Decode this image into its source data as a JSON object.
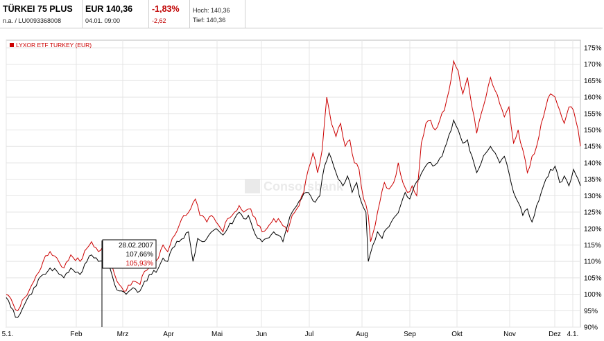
{
  "header": {
    "name": "TÜRKEI 75 PLUS",
    "isin": "n.a.  /  LU0093368008",
    "price": "EUR 140,36",
    "datetime": "04.01. 09:00",
    "change_pct": "-1,83%",
    "change_abs": "-2,62",
    "high": "Hoch: 140,36",
    "low": "Tief: 140,36"
  },
  "watermark": "Consorsbank",
  "tooltip": {
    "date": "28.02.2007",
    "black_value": "107,66%",
    "red_value": "105,93%"
  },
  "colors": {
    "red": "#cc0000",
    "black": "#000000",
    "grid": "#e4e4e4"
  },
  "chart_data": {
    "type": "line",
    "y_unit": "%",
    "ylim": [
      90,
      175
    ],
    "yticks": [
      "175%",
      "170%",
      "165%",
      "160%",
      "155%",
      "150%",
      "145%",
      "140%",
      "135%",
      "130%",
      "125%",
      "120%",
      "115%",
      "110%",
      "105%",
      "100%",
      "95%",
      "90%"
    ],
    "xticks": [
      "5.1.",
      "Feb",
      "Mrz",
      "Apr",
      "Mai",
      "Jun",
      "Jul",
      "Aug",
      "Sep",
      "Okt",
      "Nov",
      "Dez",
      "4.1."
    ],
    "legend": [
      "LYXOR ETF TURKEY (EUR)"
    ],
    "legend_position": "top-left",
    "grid": true,
    "x_points": 250,
    "series": [
      {
        "name": "LYXOR ETF TURKEY (EUR)",
        "color": "red",
        "keypoints": [
          [
            0,
            100
          ],
          [
            3,
            97
          ],
          [
            5,
            95
          ],
          [
            8,
            99
          ],
          [
            12,
            104
          ],
          [
            16,
            110
          ],
          [
            19,
            113
          ],
          [
            22,
            111
          ],
          [
            25,
            108
          ],
          [
            28,
            112
          ],
          [
            32,
            110
          ],
          [
            35,
            114
          ],
          [
            37,
            116
          ],
          [
            40,
            113
          ],
          [
            43,
            115
          ],
          [
            45,
            112
          ],
          [
            47,
            106
          ],
          [
            49,
            103
          ],
          [
            52,
            101
          ],
          [
            55,
            104
          ],
          [
            58,
            103
          ],
          [
            60,
            107
          ],
          [
            63,
            109
          ],
          [
            66,
            111
          ],
          [
            68,
            115
          ],
          [
            70,
            113
          ],
          [
            72,
            117
          ],
          [
            75,
            121
          ],
          [
            77,
            124
          ],
          [
            80,
            126
          ],
          [
            82,
            129
          ],
          [
            84,
            124
          ],
          [
            87,
            122
          ],
          [
            89,
            124
          ],
          [
            91,
            122
          ],
          [
            94,
            119
          ],
          [
            96,
            123
          ],
          [
            99,
            125
          ],
          [
            101,
            127
          ],
          [
            103,
            125
          ],
          [
            106,
            126
          ],
          [
            109,
            121
          ],
          [
            111,
            119
          ],
          [
            113,
            120
          ],
          [
            116,
            123
          ],
          [
            119,
            122
          ],
          [
            122,
            119
          ],
          [
            124,
            124
          ],
          [
            126,
            126
          ],
          [
            129,
            131
          ],
          [
            131,
            138
          ],
          [
            133,
            143
          ],
          [
            135,
            137
          ],
          [
            137,
            144
          ],
          [
            139,
            160
          ],
          [
            141,
            152
          ],
          [
            143,
            148
          ],
          [
            145,
            152
          ],
          [
            147,
            145
          ],
          [
            149,
            147
          ],
          [
            151,
            140
          ],
          [
            153,
            138
          ],
          [
            155,
            129
          ],
          [
            157,
            124
          ],
          [
            158,
            116
          ],
          [
            160,
            121
          ],
          [
            162,
            128
          ],
          [
            164,
            134
          ],
          [
            166,
            132
          ],
          [
            168,
            134
          ],
          [
            170,
            140
          ],
          [
            172,
            134
          ],
          [
            174,
            131
          ],
          [
            176,
            133
          ],
          [
            178,
            130
          ],
          [
            180,
            146
          ],
          [
            182,
            152
          ],
          [
            184,
            153
          ],
          [
            186,
            150
          ],
          [
            188,
            153
          ],
          [
            190,
            156
          ],
          [
            192,
            162
          ],
          [
            194,
            171
          ],
          [
            196,
            168
          ],
          [
            198,
            161
          ],
          [
            200,
            166
          ],
          [
            202,
            157
          ],
          [
            204,
            149
          ],
          [
            206,
            155
          ],
          [
            208,
            160
          ],
          [
            210,
            166
          ],
          [
            212,
            162
          ],
          [
            214,
            158
          ],
          [
            216,
            154
          ],
          [
            218,
            157
          ],
          [
            220,
            146
          ],
          [
            222,
            150
          ],
          [
            224,
            144
          ],
          [
            226,
            137
          ],
          [
            228,
            142
          ],
          [
            230,
            145
          ],
          [
            232,
            152
          ],
          [
            234,
            157
          ],
          [
            236,
            161
          ],
          [
            238,
            160
          ],
          [
            240,
            156
          ],
          [
            242,
            152
          ],
          [
            244,
            157
          ],
          [
            246,
            156
          ],
          [
            248,
            150
          ],
          [
            249,
            145
          ]
        ]
      },
      {
        "name": "",
        "color": "black",
        "keypoints": [
          [
            0,
            99
          ],
          [
            2,
            96
          ],
          [
            4,
            93
          ],
          [
            6,
            94
          ],
          [
            8,
            97
          ],
          [
            12,
            102
          ],
          [
            16,
            106
          ],
          [
            19,
            108
          ],
          [
            22,
            107
          ],
          [
            25,
            105
          ],
          [
            28,
            108
          ],
          [
            32,
            106
          ],
          [
            35,
            110
          ],
          [
            37,
            112
          ],
          [
            40,
            110
          ],
          [
            43,
            111
          ],
          [
            45,
            108
          ],
          [
            47,
            103
          ],
          [
            49,
            101
          ],
          [
            52,
            100
          ],
          [
            55,
            102
          ],
          [
            58,
            101
          ],
          [
            60,
            104
          ],
          [
            63,
            106
          ],
          [
            66,
            108
          ],
          [
            68,
            111
          ],
          [
            70,
            110
          ],
          [
            72,
            114
          ],
          [
            75,
            116
          ],
          [
            77,
            117
          ],
          [
            79,
            119
          ],
          [
            81,
            110
          ],
          [
            83,
            117
          ],
          [
            85,
            116
          ],
          [
            87,
            117
          ],
          [
            89,
            119
          ],
          [
            91,
            120
          ],
          [
            94,
            118
          ],
          [
            96,
            120
          ],
          [
            99,
            123
          ],
          [
            101,
            125
          ],
          [
            103,
            123
          ],
          [
            105,
            124
          ],
          [
            107,
            120
          ],
          [
            109,
            117
          ],
          [
            111,
            116
          ],
          [
            113,
            117
          ],
          [
            116,
            119
          ],
          [
            118,
            118
          ],
          [
            120,
            116
          ],
          [
            122,
            121
          ],
          [
            124,
            125
          ],
          [
            126,
            127
          ],
          [
            128,
            129
          ],
          [
            130,
            131
          ],
          [
            132,
            130
          ],
          [
            134,
            128
          ],
          [
            136,
            130
          ],
          [
            138,
            139
          ],
          [
            140,
            143
          ],
          [
            142,
            139
          ],
          [
            144,
            135
          ],
          [
            146,
            133
          ],
          [
            148,
            136
          ],
          [
            150,
            131
          ],
          [
            152,
            134
          ],
          [
            154,
            128
          ],
          [
            156,
            125
          ],
          [
            157,
            110
          ],
          [
            159,
            115
          ],
          [
            161,
            119
          ],
          [
            163,
            117
          ],
          [
            165,
            120
          ],
          [
            167,
            122
          ],
          [
            169,
            124
          ],
          [
            171,
            127
          ],
          [
            173,
            131
          ],
          [
            175,
            129
          ],
          [
            177,
            133
          ],
          [
            179,
            135
          ],
          [
            181,
            138
          ],
          [
            183,
            140
          ],
          [
            185,
            139
          ],
          [
            187,
            140
          ],
          [
            189,
            142
          ],
          [
            191,
            146
          ],
          [
            193,
            150
          ],
          [
            194,
            153
          ],
          [
            196,
            150
          ],
          [
            198,
            146
          ],
          [
            200,
            147
          ],
          [
            202,
            142
          ],
          [
            204,
            137
          ],
          [
            206,
            140
          ],
          [
            208,
            143
          ],
          [
            210,
            145
          ],
          [
            212,
            143
          ],
          [
            214,
            140
          ],
          [
            216,
            142
          ],
          [
            218,
            137
          ],
          [
            220,
            131
          ],
          [
            222,
            128
          ],
          [
            224,
            124
          ],
          [
            226,
            126
          ],
          [
            228,
            122
          ],
          [
            230,
            127
          ],
          [
            232,
            131
          ],
          [
            234,
            135
          ],
          [
            236,
            138
          ],
          [
            238,
            139
          ],
          [
            240,
            134
          ],
          [
            242,
            136
          ],
          [
            244,
            133
          ],
          [
            246,
            138
          ],
          [
            248,
            135
          ],
          [
            249,
            133
          ]
        ]
      }
    ]
  }
}
